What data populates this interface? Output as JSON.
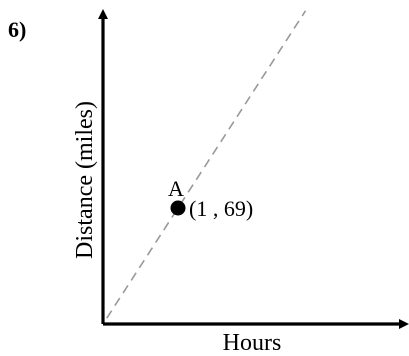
{
  "problem": {
    "number": "6)"
  },
  "chart_data": {
    "type": "scatter",
    "title": "",
    "xlabel": "Hours",
    "ylabel": "Distance (miles)",
    "points": [
      {
        "name": "A",
        "x": 1,
        "y": 69,
        "label": "(1 , 69)"
      }
    ],
    "trend_line": {
      "style": "dashed",
      "slope": 69,
      "intercept": 0
    },
    "grid": false
  }
}
